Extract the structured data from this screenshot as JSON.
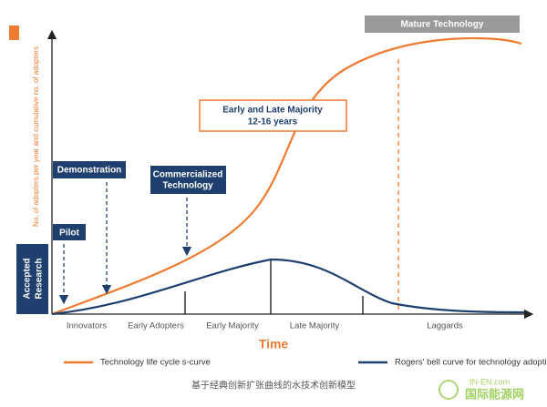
{
  "y_axis_label": "No. of adopters per year and cumulative no. of adopters",
  "x_axis_title": "Time",
  "callouts": {
    "mature": "Mature Technology",
    "majority": [
      "Early and Late Majority",
      "12-16 years"
    ],
    "demonstration": "Demonstration",
    "commercialized": [
      "Commercialized",
      "Technology"
    ],
    "pilot": "Pilot",
    "accepted": [
      "Accepted",
      "Research"
    ]
  },
  "phases": [
    "Innovators",
    "Early Adopters",
    "Early Majority",
    "Late Majority",
    "Laggards"
  ],
  "legend": [
    "Technology life cycle s-curve",
    "Rogers' bell curve for technology adoption"
  ],
  "caption": "基于经典创新扩张曲线的水技术创新模型",
  "watermark": [
    "IN-EN.com",
    "国际能源网"
  ]
}
